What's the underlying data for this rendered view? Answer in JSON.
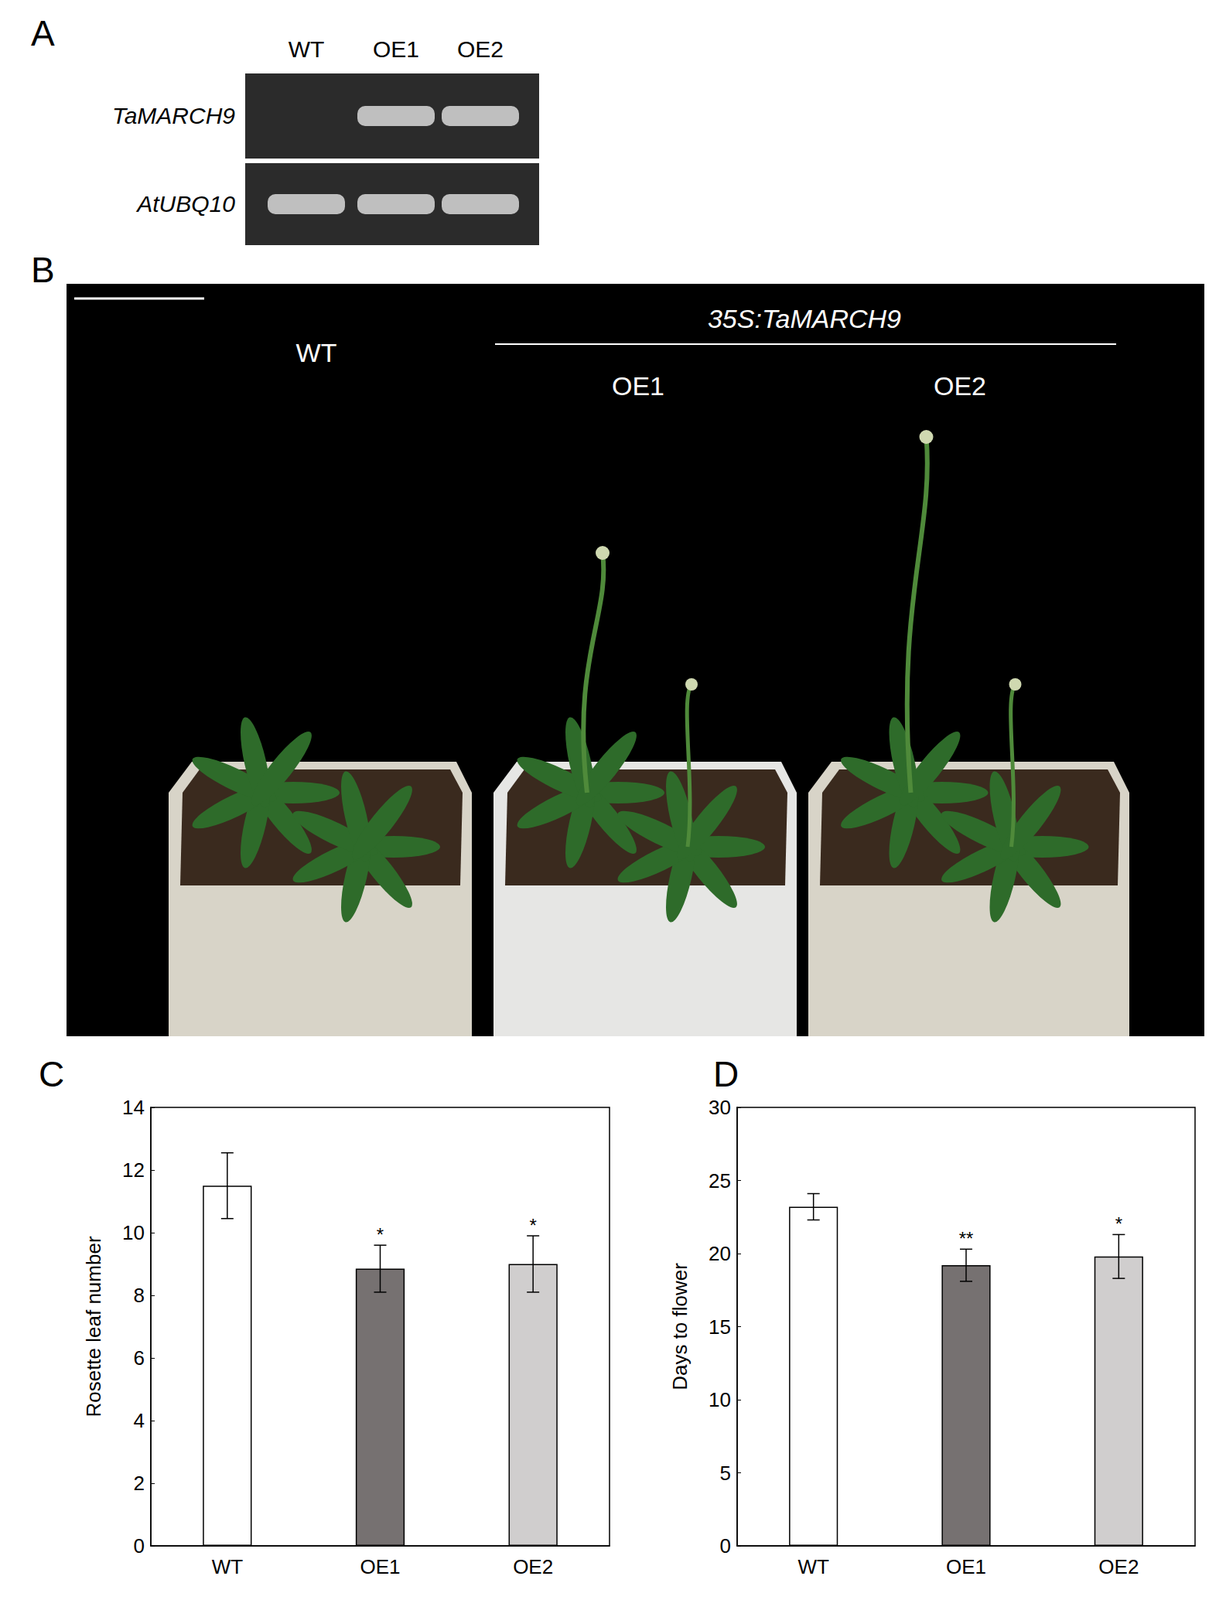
{
  "gel": {
    "label": "A",
    "lanes": [
      "WT",
      "OE1",
      "OE2"
    ],
    "rows": [
      {
        "gene": "TaMARCH9",
        "bands": [
          false,
          true,
          true
        ]
      },
      {
        "gene": "AtUBQ10",
        "bands": [
          true,
          true,
          true
        ]
      }
    ]
  },
  "photo": {
    "label": "B",
    "control": "WT",
    "construct": "35S:TaMARCH9",
    "lines": [
      "OE1",
      "OE2"
    ]
  },
  "chart_data": [
    {
      "label": "C",
      "type": "bar",
      "categories": [
        "WT",
        "OE1",
        "OE2"
      ],
      "values": [
        11.5,
        8.85,
        9.0
      ],
      "errors": [
        1.05,
        0.75,
        0.9
      ],
      "annotations": [
        null,
        "*",
        "*"
      ],
      "colors": [
        "#ffffff",
        "#767171",
        "#d0cece"
      ],
      "y_label": "Rosette leaf number",
      "ylim": [
        0,
        14
      ],
      "yticks": [
        0,
        2,
        4,
        6,
        8,
        10,
        12,
        14
      ],
      "grid": false
    },
    {
      "label": "D",
      "type": "bar",
      "categories": [
        "WT",
        "OE1",
        "OE2"
      ],
      "values": [
        23.2,
        19.2,
        19.8
      ],
      "errors": [
        0.9,
        1.1,
        1.5
      ],
      "annotations": [
        null,
        "**",
        "*"
      ],
      "colors": [
        "#ffffff",
        "#767171",
        "#d0cece"
      ],
      "y_label": "Days to flower",
      "ylim": [
        0,
        30
      ],
      "yticks": [
        0,
        5,
        10,
        15,
        20,
        25,
        30
      ],
      "grid": false
    }
  ]
}
